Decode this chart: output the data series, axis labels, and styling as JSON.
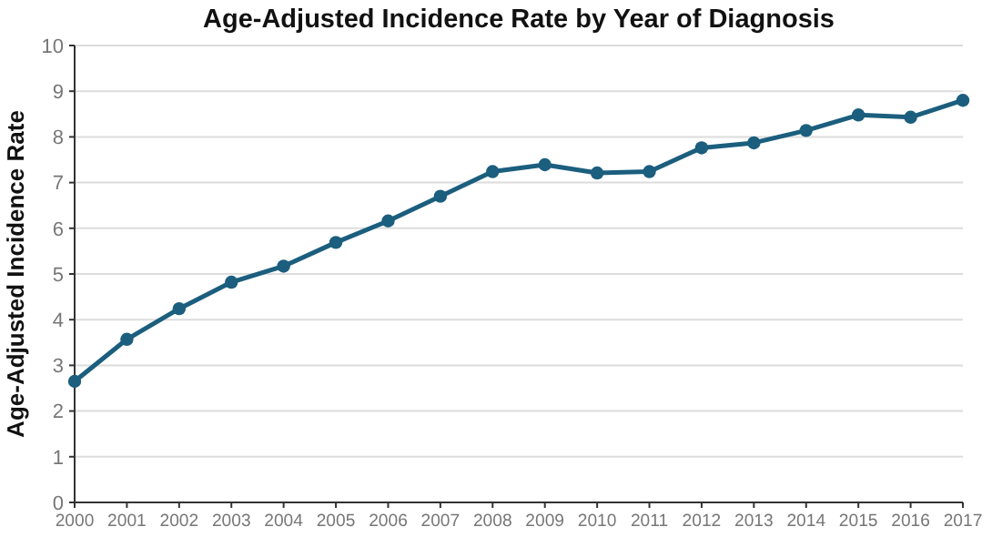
{
  "chart_data": {
    "type": "line",
    "title": "Age-Adjusted Incidence Rate by Year of Diagnosis",
    "ylabel": "Age-Adjusted Incidence Rate",
    "x": [
      2000,
      2001,
      2002,
      2003,
      2004,
      2005,
      2006,
      2007,
      2008,
      2009,
      2010,
      2011,
      2012,
      2013,
      2014,
      2015,
      2016,
      2017
    ],
    "series": [
      {
        "color": "#1b5e7e",
        "values": [
          2.65,
          3.57,
          4.24,
          4.82,
          5.17,
          5.69,
          6.16,
          6.7,
          7.24,
          7.39,
          7.21,
          7.24,
          7.76,
          7.87,
          8.14,
          8.48,
          8.43,
          8.8
        ]
      }
    ],
    "xlim": [
      2000,
      2017
    ],
    "xticks": [
      2000,
      2001,
      2002,
      2003,
      2004,
      2005,
      2006,
      2007,
      2008,
      2009,
      2010,
      2011,
      2012,
      2013,
      2014,
      2015,
      2016,
      2017
    ],
    "ylim": [
      0,
      10
    ],
    "yticks": [
      0,
      1,
      2,
      3,
      4,
      5,
      6,
      7,
      8,
      9,
      10
    ],
    "grid": "y",
    "marker": "circle",
    "line_style": "solid"
  }
}
